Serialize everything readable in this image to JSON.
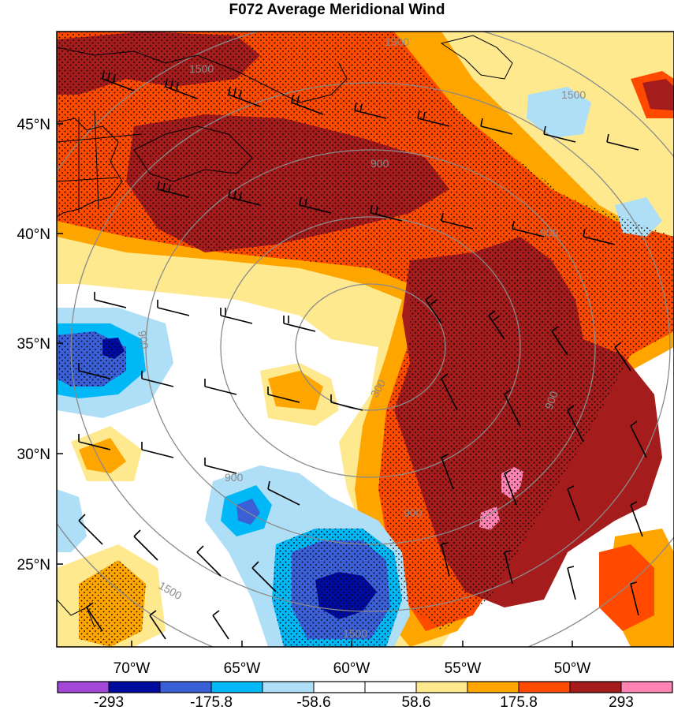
{
  "title": "F072 Average Meridional Wind",
  "latitude_labels": [
    "45°N",
    "40°N",
    "35°N",
    "30°N",
    "25°N"
  ],
  "longitude_labels": [
    "70°W",
    "65°W",
    "60°W",
    "55°W",
    "50°W"
  ],
  "colorbar": {
    "colors": [
      "#a347d6",
      "#000ca0",
      "#3b5fd6",
      "#00b8f5",
      "#aedff7",
      "#ffffff",
      "#ffffff",
      "#ffe98f",
      "#ffa500",
      "#ff4a00",
      "#a51c1c",
      "#ff84b4"
    ],
    "labels": [
      "-293",
      "-175.8",
      "-58.6",
      "58.6",
      "175.8",
      "293"
    ]
  },
  "height_contour_labels": [
    "1500",
    "1500",
    "900",
    "900",
    "900",
    "900",
    "900",
    "900",
    "300",
    "1500",
    "1500",
    "1500"
  ]
}
